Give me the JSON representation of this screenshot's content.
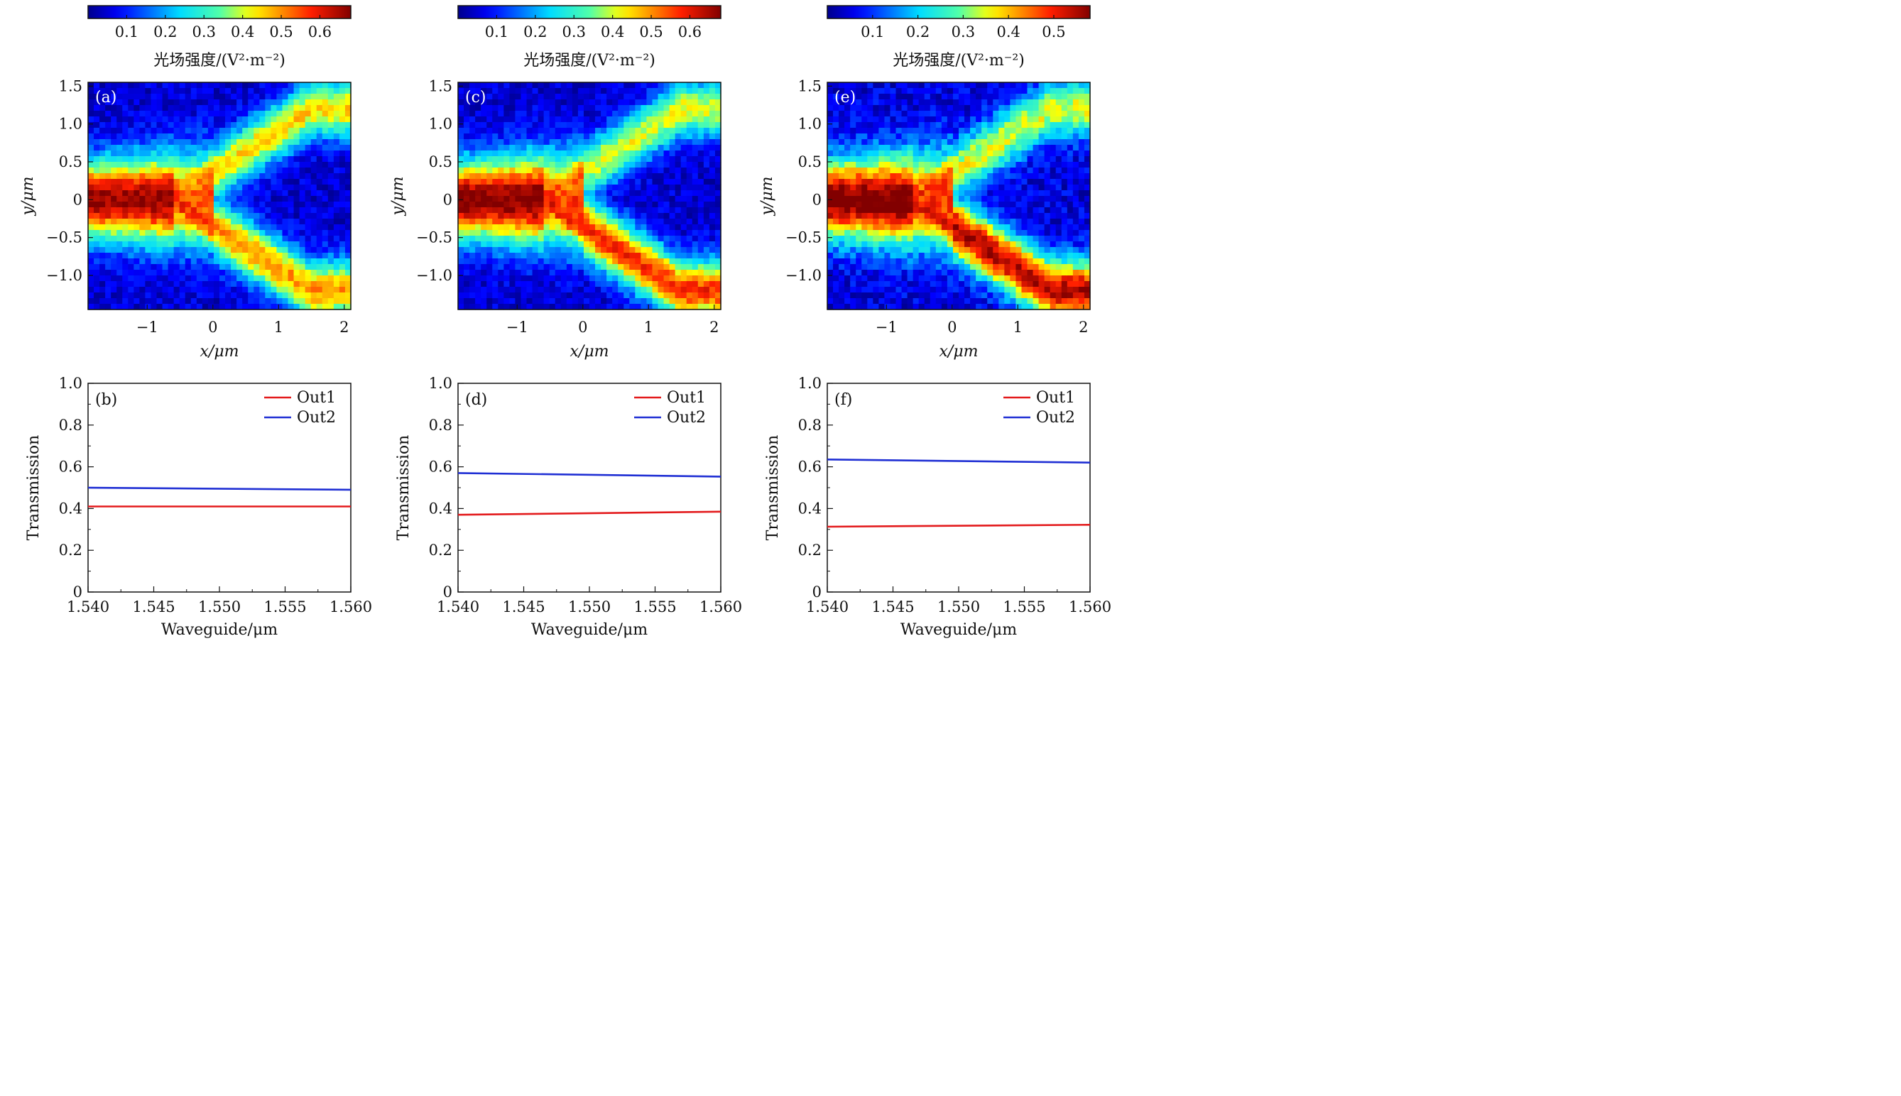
{
  "chart_data": [
    {
      "panel": "(a)",
      "type": "heatmap",
      "colorbar": {
        "ticks": [
          "0.1",
          "0.2",
          "0.3",
          "0.4",
          "0.5",
          "0.6"
        ],
        "min": 0.0,
        "max": 0.68,
        "label": "光场强度/(V²·m⁻²)"
      },
      "xlabel": "x/μm",
      "ylabel": "y/μm",
      "xlim": [
        -1.9,
        2.1
      ],
      "ylim": [
        -1.45,
        1.55
      ],
      "xticks": [
        "−1",
        "0",
        "1",
        "2"
      ],
      "yticks": [
        "1.5",
        "1.0",
        "0.5",
        "0",
        "−0.5",
        "−1.0"
      ],
      "field": {
        "input_peak": 0.62,
        "out_upper": 0.4,
        "out_lower": 0.44
      }
    },
    {
      "panel": "(b)",
      "type": "line",
      "xlabel": "Waveguide/μm",
      "ylabel": "Transmission",
      "xlim": [
        1.54,
        1.56
      ],
      "ylim": [
        0,
        1.0
      ],
      "xticks": [
        "1.540",
        "1.545",
        "1.550",
        "1.555",
        "1.560"
      ],
      "yticks": [
        "0",
        "0.2",
        "0.4",
        "0.6",
        "0.8",
        "1.0"
      ],
      "series": [
        {
          "name": "Out1",
          "color": "#e31a1c",
          "x": [
            1.54,
            1.56
          ],
          "y": [
            0.41,
            0.41
          ]
        },
        {
          "name": "Out2",
          "color": "#1f2fd4",
          "x": [
            1.54,
            1.56
          ],
          "y": [
            0.5,
            0.49
          ]
        }
      ]
    },
    {
      "panel": "(c)",
      "type": "heatmap",
      "colorbar": {
        "ticks": [
          "0.1",
          "0.2",
          "0.3",
          "0.4",
          "0.5",
          "0.6"
        ],
        "min": 0.0,
        "max": 0.68,
        "label": "光场强度/(V²·m⁻²)"
      },
      "xlabel": "x/μm",
      "ylabel": "y/μm",
      "xlim": [
        -1.9,
        2.1
      ],
      "ylim": [
        -1.45,
        1.55
      ],
      "xticks": [
        "−1",
        "0",
        "1",
        "2"
      ],
      "yticks": [
        "1.5",
        "1.0",
        "0.5",
        "0",
        "−0.5",
        "−1.0"
      ],
      "field": {
        "input_peak": 0.64,
        "out_upper": 0.36,
        "out_lower": 0.52
      }
    },
    {
      "panel": "(d)",
      "type": "line",
      "xlabel": "Waveguide/μm",
      "ylabel": "Transmission",
      "xlim": [
        1.54,
        1.56
      ],
      "ylim": [
        0,
        1.0
      ],
      "xticks": [
        "1.540",
        "1.545",
        "1.550",
        "1.555",
        "1.560"
      ],
      "yticks": [
        "0",
        "0.2",
        "0.4",
        "0.6",
        "0.8",
        "1.0"
      ],
      "series": [
        {
          "name": "Out1",
          "color": "#e31a1c",
          "x": [
            1.54,
            1.56
          ],
          "y": [
            0.37,
            0.385
          ]
        },
        {
          "name": "Out2",
          "color": "#1f2fd4",
          "x": [
            1.54,
            1.56
          ],
          "y": [
            0.57,
            0.553
          ]
        }
      ]
    },
    {
      "panel": "(e)",
      "type": "heatmap",
      "colorbar": {
        "ticks": [
          "0.1",
          "0.2",
          "0.3",
          "0.4",
          "0.5"
        ],
        "min": 0.0,
        "max": 0.58,
        "label": "光场强度/(V²·m⁻²)"
      },
      "xlabel": "x/μm",
      "ylabel": "y/μm",
      "xlim": [
        -1.9,
        2.1
      ],
      "ylim": [
        -1.45,
        1.55
      ],
      "xticks": [
        "−1",
        "0",
        "1",
        "2"
      ],
      "yticks": [
        "1.5",
        "1.0",
        "0.5",
        "0",
        "−0.5",
        "−1.0"
      ],
      "field": {
        "input_peak": 0.55,
        "out_upper": 0.3,
        "out_lower": 0.5
      }
    },
    {
      "panel": "(f)",
      "type": "line",
      "xlabel": "Waveguide/μm",
      "ylabel": "Transmission",
      "xlim": [
        1.54,
        1.56
      ],
      "ylim": [
        0,
        1.0
      ],
      "xticks": [
        "1.540",
        "1.545",
        "1.550",
        "1.555",
        "1.560"
      ],
      "yticks": [
        "0",
        "0.2",
        "0.4",
        "0.6",
        "0.8",
        "1.0"
      ],
      "series": [
        {
          "name": "Out1",
          "color": "#e31a1c",
          "x": [
            1.54,
            1.56
          ],
          "y": [
            0.313,
            0.322
          ]
        },
        {
          "name": "Out2",
          "color": "#1f2fd4",
          "x": [
            1.54,
            1.56
          ],
          "y": [
            0.635,
            0.62
          ]
        }
      ]
    }
  ]
}
